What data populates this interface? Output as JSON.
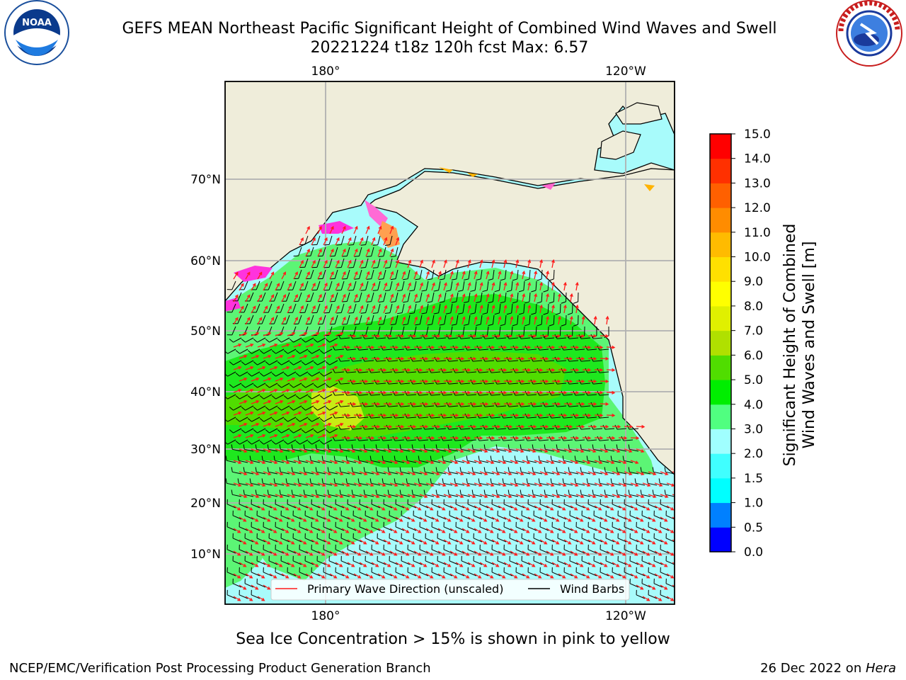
{
  "header": {
    "title_line1": "GEFS MEAN Northeast Pacific Significant Height of Combined Wind Waves and Swell",
    "title_line2": "20221224 t18z 120h fcst   Max: 6.57"
  },
  "logos": {
    "left": {
      "name": "noaa-logo-icon",
      "text": "NOAA",
      "ring_text": "NATIONAL OCEANIC AND ATMOSPHERIC ADMINISTRATION · U.S. DEPARTMENT OF COMMERCE"
    },
    "right": {
      "name": "nws-logo-icon",
      "ring_text": "NATIONAL WEATHER SERVICE"
    }
  },
  "map": {
    "top_lon_labels": [
      "180°",
      "120°W"
    ],
    "bottom_lon_labels": [
      "180°",
      "120°W"
    ],
    "lat_labels": [
      "70°N",
      "60°N",
      "50°N",
      "40°N",
      "30°N",
      "20°N",
      "10°N"
    ],
    "legend": {
      "wave_direction": "Primary Wave Direction (unscaled)",
      "wind_barbs": "Wind Barbs"
    },
    "colors": {
      "land": "#efedda",
      "grid": "#b0b0b0",
      "wave_arrow": "#ff1a1a",
      "wind_barb": "#000000"
    }
  },
  "colorbar": {
    "label_line1": "Significant Height of Combined",
    "label_line2": "Wind Waves and Swell [m]",
    "levels": [
      "0.0",
      "0.5",
      "1.0",
      "1.5",
      "2.0",
      "3.0",
      "4.0",
      "5.0",
      "6.0",
      "7.0",
      "8.0",
      "9.0",
      "10.0",
      "11.0",
      "12.0",
      "13.0",
      "14.0",
      "15.0"
    ],
    "colors": [
      "#0000ff",
      "#0080ff",
      "#00ffff",
      "#40ffff",
      "#a0ffff",
      "#50ff80",
      "#00ee00",
      "#50dd00",
      "#b0e000",
      "#e0f000",
      "#ffff00",
      "#ffe000",
      "#ffbb00",
      "#ff8c00",
      "#ff6000",
      "#ff3000",
      "#ff0000"
    ]
  },
  "notes": {
    "ice_note": "Sea Ice Concentration > 15% is shown in pink to yellow"
  },
  "footer": {
    "left": "NCEP/EMC/Verification Post Processing Product Generation Branch",
    "right_date": "26 Dec 2022 on ",
    "right_host": "Hera"
  }
}
